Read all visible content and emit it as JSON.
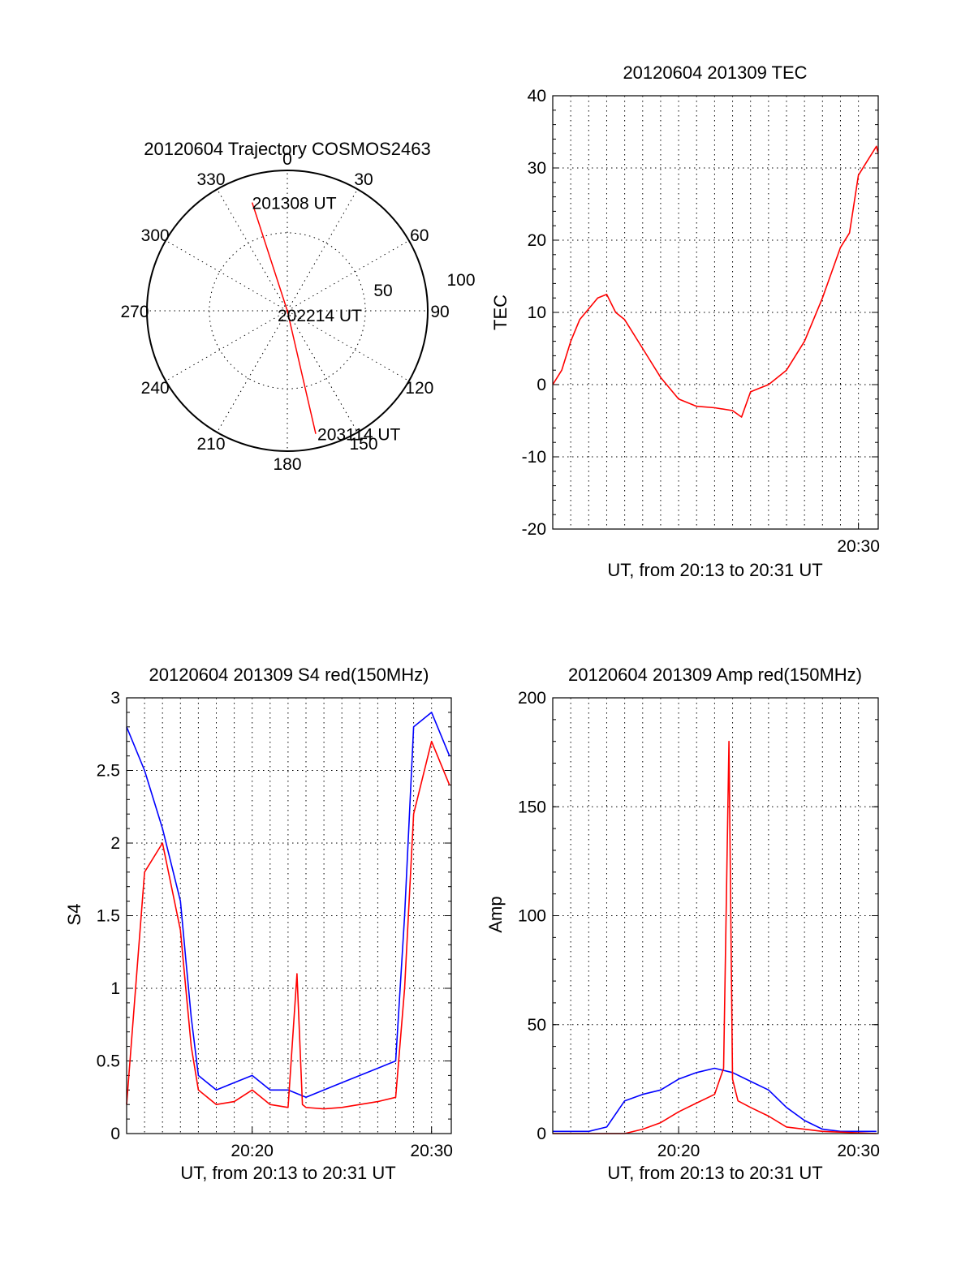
{
  "colors": {
    "red": "#ff0000",
    "blue": "#0000ff",
    "grid": "#000000"
  },
  "chart_data": [
    {
      "id": "polar",
      "type": "polar-trajectory",
      "title": "20120604 Trajectory COSMOS2463",
      "angle_labels": [
        "0",
        "30",
        "60",
        "90",
        "120",
        "150",
        "180",
        "210",
        "240",
        "270",
        "300",
        "330"
      ],
      "radial_labels": [
        "50",
        "100"
      ],
      "trajectory": [
        {
          "azimuth": 342,
          "elevation": 17,
          "label": "201308 UT"
        },
        {
          "azimuth": 0,
          "elevation": 90,
          "label": "202214 UT"
        },
        {
          "azimuth": 167,
          "elevation": 9,
          "label": "203114 UT"
        }
      ]
    },
    {
      "id": "tec",
      "type": "line",
      "title": "20120604 201309 TEC",
      "xlabel": "UT, from 20:13 to 20:31 UT",
      "ylabel": "TEC",
      "xlim": [
        0,
        18.1
      ],
      "ylim": [
        -20,
        40
      ],
      "yticks": [
        "-20",
        "-10",
        "0",
        "10",
        "20",
        "30",
        "40"
      ],
      "xticks": [
        {
          "x": 17,
          "label": "20:30"
        }
      ],
      "series": [
        {
          "color": "red",
          "x": [
            0,
            0.5,
            1,
            1.5,
            2,
            2.5,
            3,
            3.5,
            4,
            5,
            6,
            7,
            8,
            9,
            10,
            10.5,
            11,
            11.5,
            12,
            13,
            14,
            15,
            16,
            16.5,
            17,
            17.5,
            18,
            18.1
          ],
          "y": [
            0,
            2,
            6,
            9,
            10.5,
            12,
            12.5,
            10,
            9,
            5,
            1,
            -2,
            -3,
            -3.2,
            -3.6,
            -4.5,
            -1,
            -0.5,
            0,
            2,
            6,
            12,
            19,
            21,
            29,
            31,
            33,
            32
          ]
        }
      ]
    },
    {
      "id": "s4",
      "type": "line",
      "title": "20120604 201309 S4 red(150MHz)",
      "xlabel": "UT, from 20:13 to 20:31 UT",
      "ylabel": "S4",
      "xlim": [
        0,
        18.1
      ],
      "ylim": [
        0,
        3
      ],
      "yticks": [
        "0",
        "0.5",
        "1",
        "1.5",
        "2",
        "2.5",
        "3"
      ],
      "xticks": [
        {
          "x": 7,
          "label": "20:20"
        },
        {
          "x": 17,
          "label": "20:30"
        }
      ],
      "series": [
        {
          "color": "blue",
          "x": [
            0,
            1,
            2,
            3,
            3.3,
            3.6,
            4,
            5,
            6,
            7,
            8,
            9,
            10,
            11,
            12,
            13,
            14,
            15,
            15.5,
            16,
            17,
            18
          ],
          "y": [
            2.8,
            2.5,
            2.1,
            1.6,
            1.2,
            0.8,
            0.4,
            0.3,
            0.35,
            0.4,
            0.3,
            0.3,
            0.25,
            0.3,
            0.35,
            0.4,
            0.45,
            0.5,
            1.5,
            2.8,
            2.9,
            2.6
          ]
        },
        {
          "color": "red",
          "x": [
            0,
            1,
            2,
            3,
            3.3,
            3.6,
            4,
            5,
            6,
            7,
            8,
            9,
            9.5,
            9.8,
            10,
            11,
            12,
            13,
            14,
            15,
            15.5,
            16,
            17,
            18
          ],
          "y": [
            0.2,
            1.8,
            2.0,
            1.4,
            1.0,
            0.6,
            0.3,
            0.2,
            0.22,
            0.3,
            0.2,
            0.18,
            1.1,
            0.2,
            0.18,
            0.17,
            0.18,
            0.2,
            0.22,
            0.25,
            1.0,
            2.2,
            2.7,
            2.4
          ]
        }
      ]
    },
    {
      "id": "amp",
      "type": "line",
      "title": "20120604 201309 Amp red(150MHz)",
      "xlabel": "UT, from 20:13 to 20:31 UT",
      "ylabel": "Amp",
      "xlim": [
        0,
        18.1
      ],
      "ylim": [
        0,
        200
      ],
      "yticks": [
        "0",
        "50",
        "100",
        "150",
        "200"
      ],
      "xticks": [
        {
          "x": 7,
          "label": "20:20"
        },
        {
          "x": 17,
          "label": "20:30"
        }
      ],
      "series": [
        {
          "color": "blue",
          "x": [
            0,
            2,
            3,
            4,
            5,
            6,
            7,
            8,
            9,
            10,
            11,
            12,
            13,
            14,
            15,
            16,
            17,
            18
          ],
          "y": [
            1,
            1,
            3,
            15,
            18,
            20,
            25,
            28,
            30,
            28,
            24,
            20,
            12,
            6,
            2,
            1,
            1,
            1
          ]
        },
        {
          "color": "red",
          "x": [
            0,
            4,
            5,
            6,
            7,
            8,
            9,
            9.5,
            9.8,
            10,
            10.3,
            11,
            12,
            13,
            15,
            18
          ],
          "y": [
            0,
            0,
            2,
            5,
            10,
            14,
            18,
            30,
            180,
            25,
            15,
            12,
            8,
            3,
            1,
            0
          ]
        }
      ]
    }
  ]
}
